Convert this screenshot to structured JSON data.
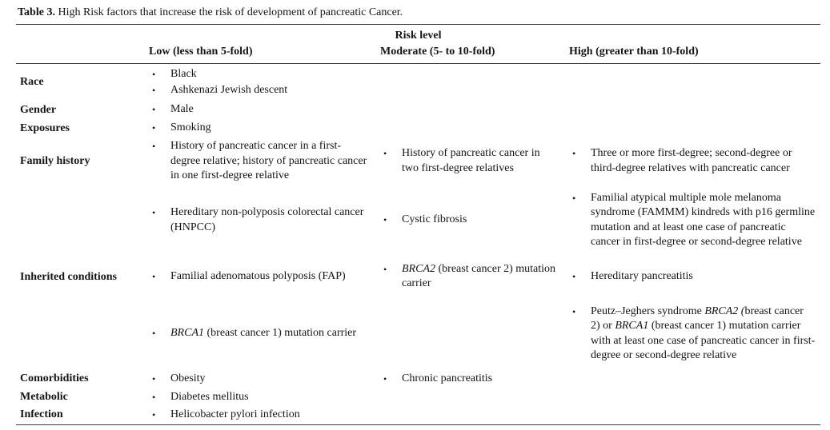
{
  "colors": {
    "text": "#141414",
    "rule": "#3c3c3c",
    "background": "#ffffff"
  },
  "caption": {
    "label": "Table 3.",
    "text": " High Risk factors that increase the risk of development of pancreatic Cancer."
  },
  "table": {
    "spanner": "Risk level",
    "bullet_glyph": "•",
    "columns": [
      "Low (less than 5-fold)",
      "Moderate (5- to 10-fold)",
      "High (greater than 10-fold)"
    ],
    "groups": [
      {
        "label": "Race",
        "subrows": [
          {
            "low": [
              "Black",
              "Ashkenazi Jewish descent"
            ],
            "moderate": [],
            "high": []
          }
        ]
      },
      {
        "label": "Gender",
        "subrows": [
          {
            "low": [
              "Male"
            ],
            "moderate": [],
            "high": []
          }
        ]
      },
      {
        "label": "Exposures",
        "subrows": [
          {
            "low": [
              "Smoking"
            ],
            "moderate": [],
            "high": []
          }
        ]
      },
      {
        "label": "Family history",
        "subrows": [
          {
            "low": [
              "History of pancreatic cancer in a first-degree relative; history of pancreatic cancer in one first-degree relative"
            ],
            "moderate": [
              "History of pancreatic cancer in two first-degree relatives"
            ],
            "high": [
              "Three or more first-degree; second-degree or third-degree relatives with pancreatic cancer"
            ]
          }
        ]
      },
      {
        "label": "Inherited conditions",
        "subrows": [
          {
            "low": [
              "Hereditary non-polyposis colorectal cancer (HNPCC)"
            ],
            "moderate": [
              "Cystic fibrosis"
            ],
            "high": [
              "Familial atypical multiple mole melanoma syndrome (FAMMM) kindreds with p16 germline mutation and at least one case of pancreatic cancer in first-degree or second-degree relative"
            ]
          },
          {
            "low": [
              "Familial adenomatous polyposis (FAP)"
            ],
            "moderate": [
              {
                "parts": [
                  {
                    "text": "BRCA2",
                    "italic": true
                  },
                  {
                    "text": " (breast cancer 2) mutation carrier"
                  }
                ]
              }
            ],
            "high": [
              "Hereditary pancreatitis"
            ]
          },
          {
            "low": [
              {
                "parts": [
                  {
                    "text": "BRCA1",
                    "italic": true
                  },
                  {
                    "text": " (breast cancer 1) mutation carrier"
                  }
                ]
              }
            ],
            "moderate": [],
            "high": [
              {
                "parts": [
                  {
                    "text": "Peutz–Jeghers syndrome "
                  },
                  {
                    "text": "BRCA2 (",
                    "italic": true
                  },
                  {
                    "text": "breast cancer 2) or "
                  },
                  {
                    "text": "BRCA1",
                    "italic": true
                  },
                  {
                    "text": " (breast cancer 1) mutation carrier with at least one case of pancreatic cancer in first-degree or second-degree relative"
                  }
                ]
              }
            ]
          }
        ]
      },
      {
        "label": "Comorbidities",
        "subrows": [
          {
            "low": [
              "Obesity"
            ],
            "moderate": [
              "Chronic pancreatitis"
            ],
            "high": []
          }
        ]
      },
      {
        "label": "Metabolic",
        "subrows": [
          {
            "low": [
              "Diabetes mellitus"
            ],
            "moderate": [],
            "high": []
          }
        ]
      },
      {
        "label": "Infection",
        "subrows": [
          {
            "low": [
              "Helicobacter pylori infection"
            ],
            "moderate": [],
            "high": []
          }
        ]
      }
    ]
  }
}
